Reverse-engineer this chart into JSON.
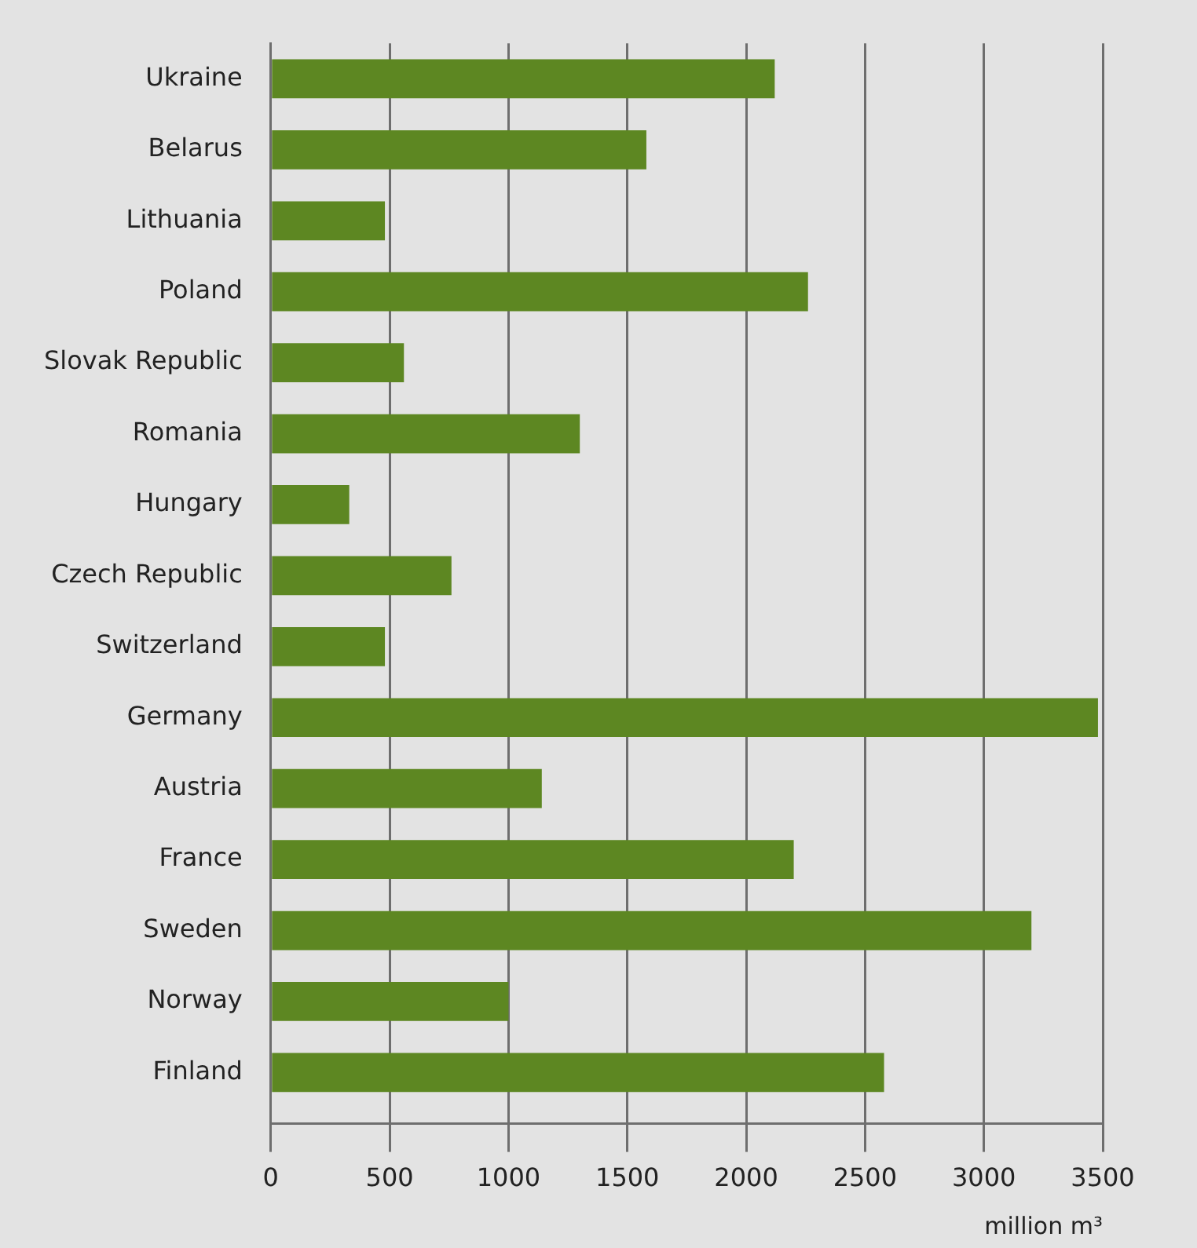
{
  "chart_data": {
    "type": "bar",
    "orientation": "horizontal",
    "xlabel": "million m³",
    "categories": [
      "Ukraine",
      "Belarus",
      "Lithuania",
      "Poland",
      "Slovak Republic",
      "Romania",
      "Hungary",
      "Czech Republic",
      "Switzerland",
      "Germany",
      "Austria",
      "France",
      "Sweden",
      "Norway",
      "Finland"
    ],
    "values": [
      2120,
      1580,
      480,
      2260,
      560,
      1300,
      330,
      760,
      480,
      3480,
      1140,
      2200,
      3200,
      1000,
      2580
    ],
    "color": "#5d8722",
    "xlim": [
      0,
      3500
    ],
    "xticks": [
      0,
      500,
      1000,
      1500,
      2000,
      2500,
      3000,
      3500
    ],
    "grid": "x",
    "legend": false
  }
}
